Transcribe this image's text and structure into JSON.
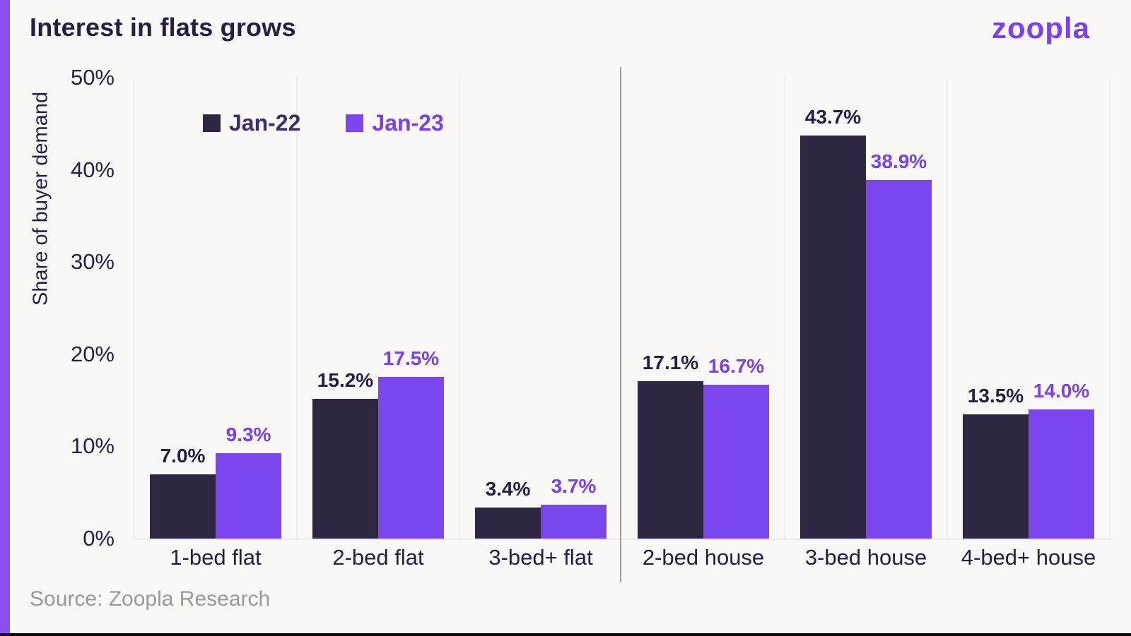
{
  "header": {
    "title": "Interest in flats grows",
    "logo_text": "zoopla",
    "logo_color": "#7c3ff2"
  },
  "chart_data": {
    "type": "bar",
    "title": "Interest in flats grows",
    "categories": [
      "1-bed flat",
      "2-bed flat",
      "3-bed+ flat",
      "2-bed house",
      "3-bed house",
      "4-bed+ house"
    ],
    "series": [
      {
        "name": "Jan-22",
        "color": "#2f2644",
        "label_color": "#271e45",
        "legend_text_color": "#3f2c6e",
        "values": [
          7.0,
          15.2,
          3.4,
          17.1,
          43.7,
          13.5
        ],
        "labels": [
          "7.0%",
          "15.2%",
          "3.4%",
          "17.1%",
          "43.7%",
          "13.5%"
        ]
      },
      {
        "name": "Jan-23",
        "color": "#7c46ee",
        "label_color": "#7a40f0",
        "legend_text_color": "#7a40f0",
        "values": [
          9.3,
          17.5,
          3.7,
          16.7,
          38.9,
          14.0
        ],
        "labels": [
          "9.3%",
          "17.5%",
          "3.7%",
          "16.7%",
          "38.9%",
          "14.0%"
        ]
      }
    ],
    "xlabel": "",
    "ylabel": "Share of buyer demand",
    "yticks": [
      "0%",
      "10%",
      "20%",
      "30%",
      "40%",
      "50%"
    ],
    "ylim": [
      0,
      50
    ],
    "grid": "vertical category separators only",
    "divider_between": [
      "3-bed+ flat",
      "2-bed house"
    ],
    "legend_position": "top-left inside plot",
    "accent_colors": {
      "left_strip": "#8950f0",
      "divider": "#9c9c9c",
      "gridline": "#efeceb"
    }
  },
  "footer": {
    "source": "Source: Zoopla Research"
  }
}
